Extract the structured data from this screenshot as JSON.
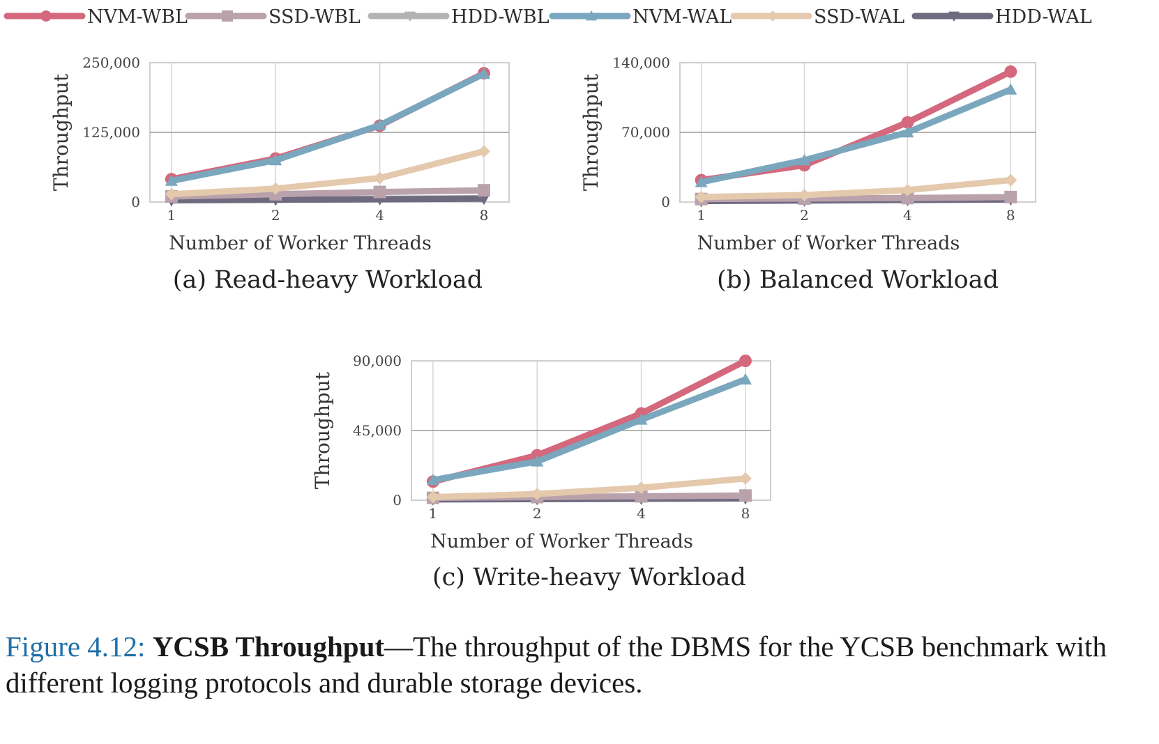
{
  "legend": [
    {
      "name": "NVM-WBL",
      "color": "#d4687c",
      "marker": "circle"
    },
    {
      "name": "SSD-WBL",
      "color": "#b9a2ab",
      "marker": "square"
    },
    {
      "name": "HDD-WBL",
      "color": "#b3b3b3",
      "marker": "triangle-down"
    },
    {
      "name": "NVM-WAL",
      "color": "#7aa7bd",
      "marker": "triangle-up"
    },
    {
      "name": "SSD-WAL",
      "color": "#e4c9ad",
      "marker": "diamond"
    },
    {
      "name": "HDD-WAL",
      "color": "#6f6a80",
      "marker": "triangle-down"
    }
  ],
  "chart_data": [
    {
      "type": "line",
      "title": "(a) Read-heavy Workload",
      "xlabel": "Number of Worker Threads",
      "ylabel": "Throughput",
      "categories": [
        "1",
        "2",
        "4",
        "8"
      ],
      "yticks": [
        "0",
        "125,000",
        "250,000"
      ],
      "ylim": [
        0,
        250000
      ],
      "series": [
        {
          "name": "NVM-WBL",
          "values": [
            41000,
            78000,
            137000,
            231000
          ]
        },
        {
          "name": "SSD-WBL",
          "values": [
            10000,
            14000,
            18000,
            21000
          ]
        },
        {
          "name": "HDD-WBL",
          "values": [
            4000,
            5000,
            6000,
            7000
          ]
        },
        {
          "name": "NVM-WAL",
          "values": [
            38000,
            75000,
            138000,
            230000
          ]
        },
        {
          "name": "SSD-WAL",
          "values": [
            14000,
            24000,
            43000,
            91000
          ]
        },
        {
          "name": "HDD-WAL",
          "values": [
            3000,
            4000,
            5000,
            6000
          ]
        }
      ]
    },
    {
      "type": "line",
      "title": "(b) Balanced Workload",
      "xlabel": "Number of Worker Threads",
      "ylabel": "Throughput",
      "categories": [
        "1",
        "2",
        "4",
        "8"
      ],
      "yticks": [
        "0",
        "70,000",
        "140,000"
      ],
      "ylim": [
        0,
        140000
      ],
      "series": [
        {
          "name": "NVM-WBL",
          "values": [
            22000,
            37000,
            80000,
            131000
          ]
        },
        {
          "name": "SSD-WBL",
          "values": [
            3000,
            3500,
            4000,
            5000
          ]
        },
        {
          "name": "HDD-WBL",
          "values": [
            1500,
            2000,
            2500,
            3000
          ]
        },
        {
          "name": "NVM-WAL",
          "values": [
            20000,
            42000,
            70000,
            113000
          ]
        },
        {
          "name": "SSD-WAL",
          "values": [
            5000,
            7000,
            12000,
            22000
          ]
        },
        {
          "name": "HDD-WAL",
          "values": [
            1000,
            1500,
            2000,
            2500
          ]
        }
      ]
    },
    {
      "type": "line",
      "title": "(c) Write-heavy Workload",
      "xlabel": "Number of Worker Threads",
      "ylabel": "Throughput",
      "categories": [
        "1",
        "2",
        "4",
        "8"
      ],
      "yticks": [
        "0",
        "45,000",
        "90,000"
      ],
      "ylim": [
        0,
        90000
      ],
      "series": [
        {
          "name": "NVM-WBL",
          "values": [
            12000,
            29000,
            56000,
            90000
          ]
        },
        {
          "name": "SSD-WBL",
          "values": [
            1500,
            2000,
            2500,
            3000
          ]
        },
        {
          "name": "HDD-WBL",
          "values": [
            800,
            1000,
            1200,
            1500
          ]
        },
        {
          "name": "NVM-WAL",
          "values": [
            13000,
            25000,
            52000,
            78000
          ]
        },
        {
          "name": "SSD-WAL",
          "values": [
            2000,
            4000,
            8000,
            14000
          ]
        },
        {
          "name": "HDD-WAL",
          "values": [
            500,
            700,
            900,
            1100
          ]
        }
      ]
    }
  ],
  "caption": {
    "figure_label": "Figure 4.12:",
    "bold_title": "YCSB Throughput",
    "text": "—The throughput of the DBMS for the YCSB benchmark with different logging protocols and durable storage devices."
  }
}
